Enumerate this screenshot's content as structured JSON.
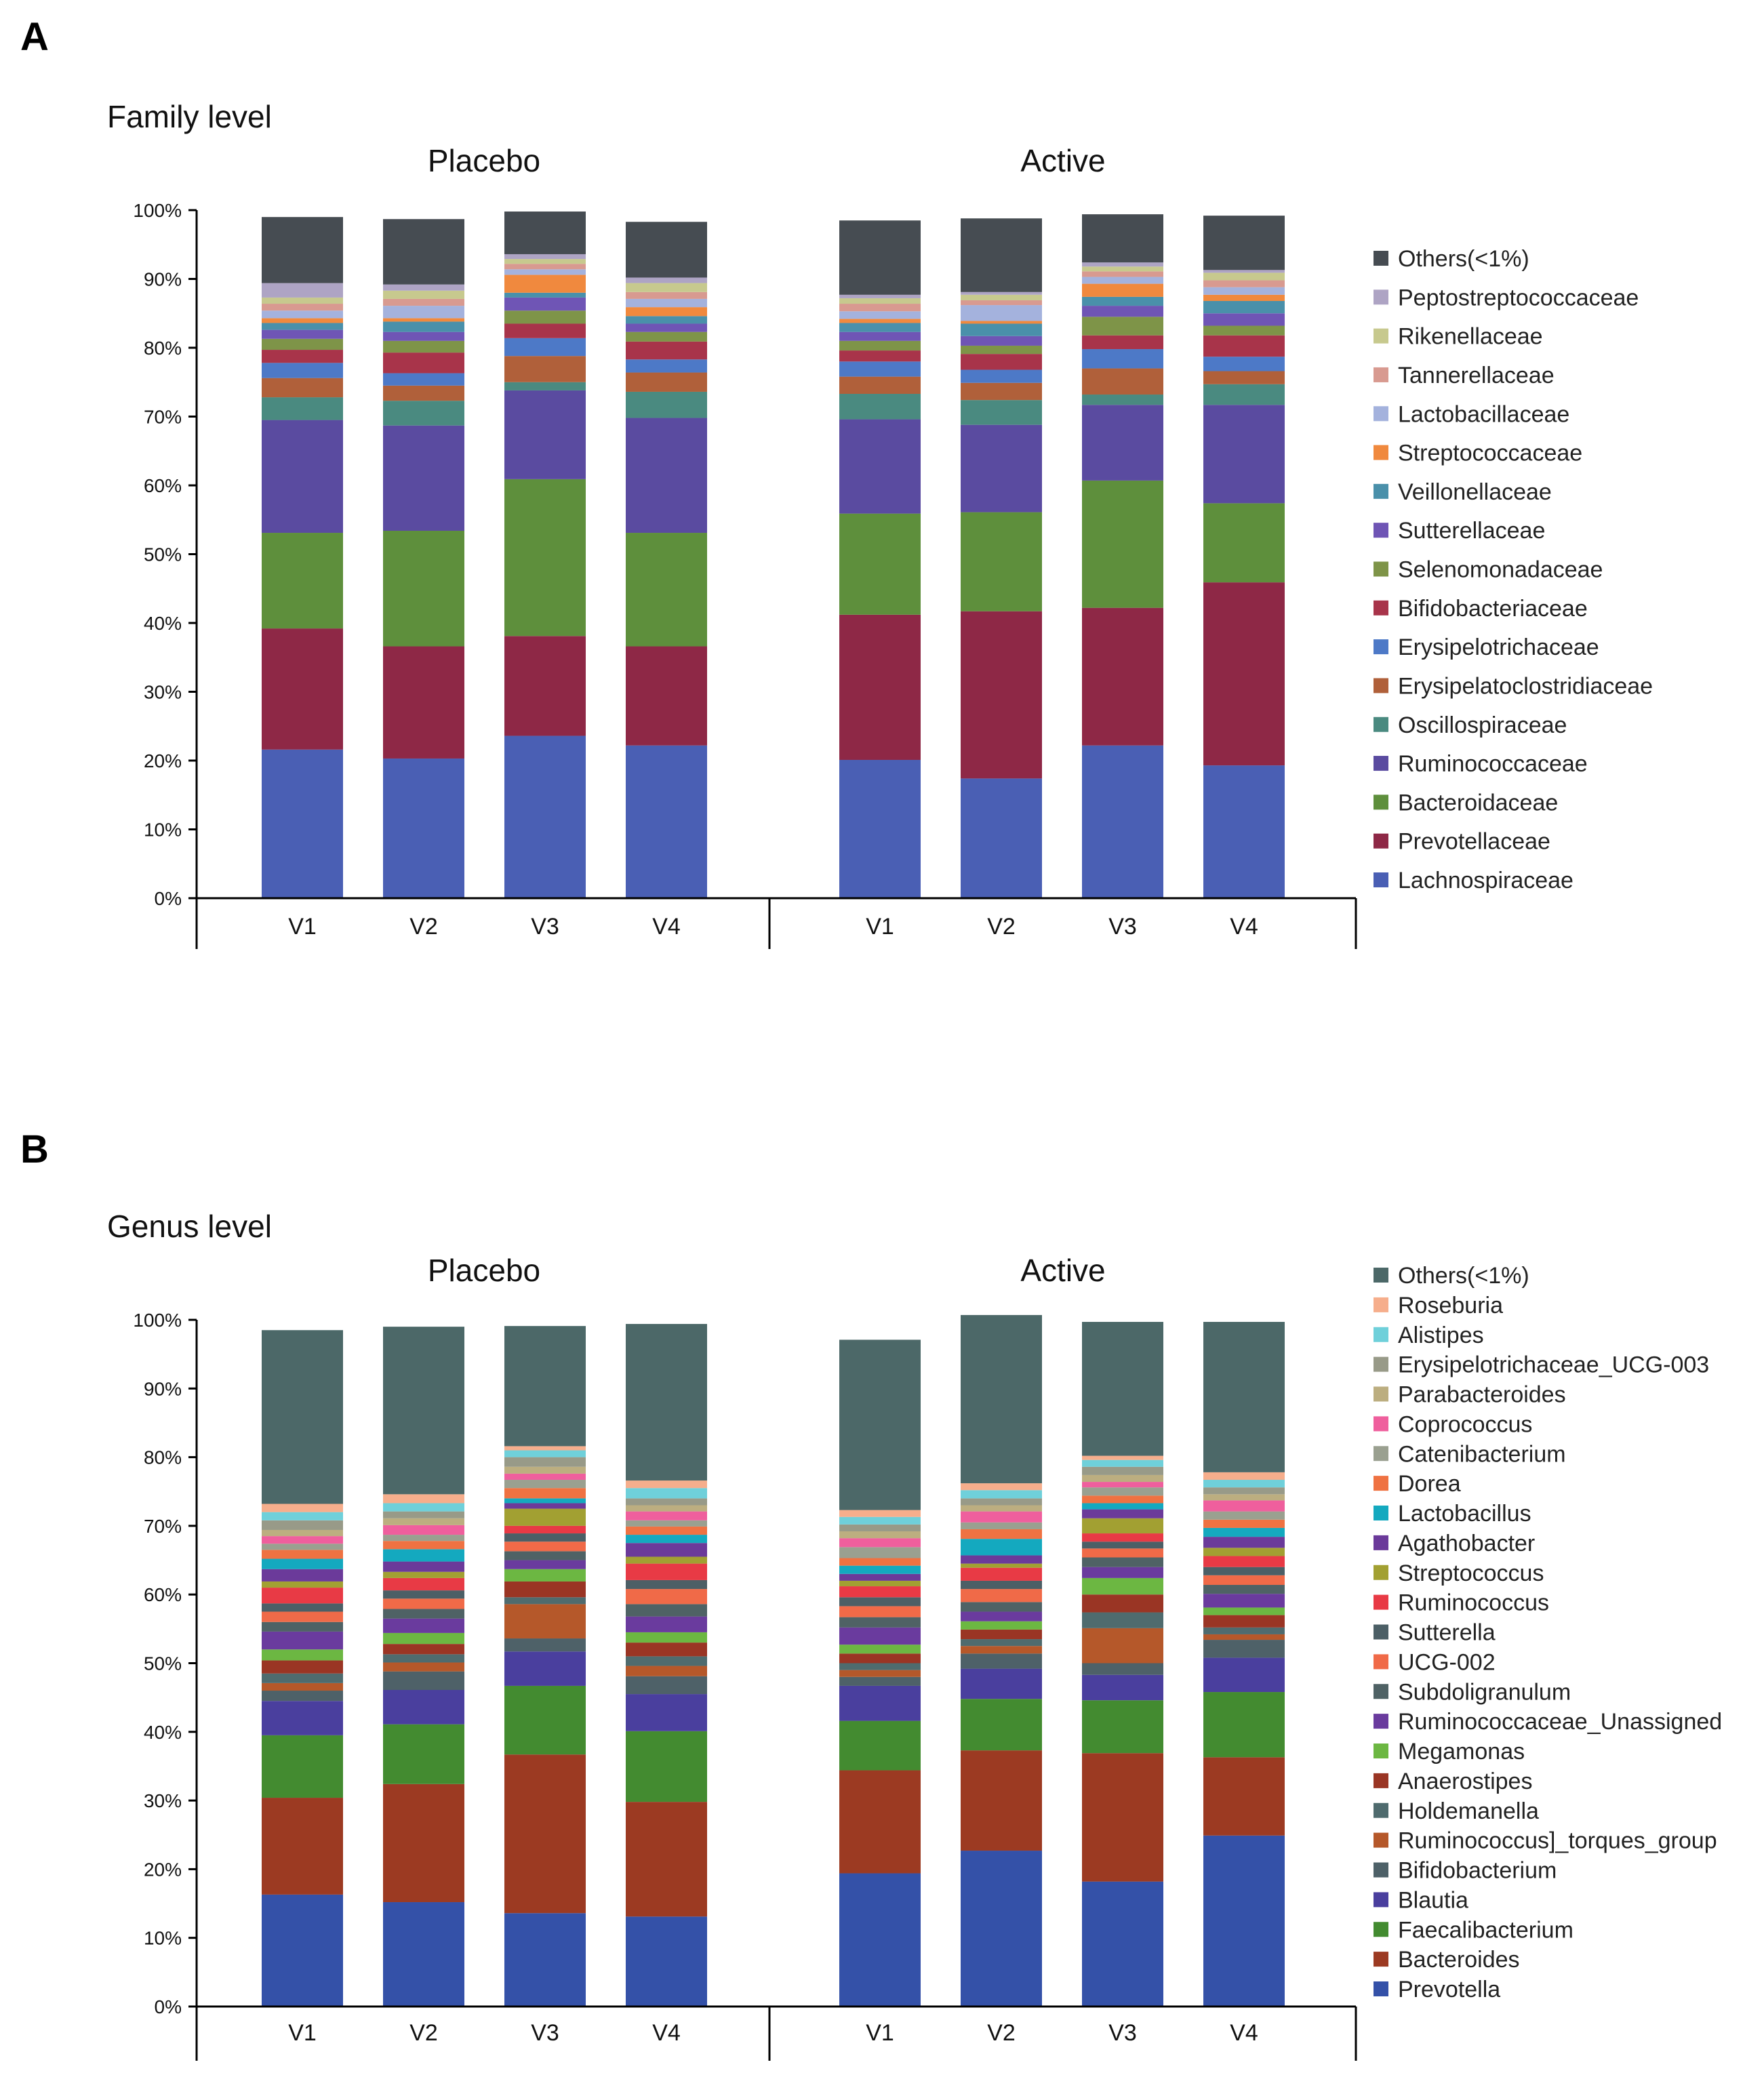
{
  "panels": [
    {
      "letter": "A",
      "level_title": "Family level",
      "groups": [
        "Placebo",
        "Active"
      ],
      "categories": [
        "V1",
        "V2",
        "V3",
        "V4"
      ],
      "y_ticks": [
        "0%",
        "10%",
        "20%",
        "30%",
        "40%",
        "50%",
        "60%",
        "70%",
        "80%",
        "90%",
        "100%"
      ],
      "chart_data": {
        "type": "bar",
        "stacked": true,
        "title": "Family level",
        "xlabel": "",
        "ylabel": "",
        "ylim": [
          0,
          100
        ],
        "bars": [
          "Placebo V1",
          "Placebo V2",
          "Placebo V3",
          "Placebo V4",
          "Active V1",
          "Active V2",
          "Active V3",
          "Active V4"
        ],
        "series": [
          {
            "name": "Lachnospiraceae",
            "color": "#4a5fb4",
            "values": [
              21.6,
              20.3,
              23.6,
              22.2,
              20.1,
              17.4,
              22.2,
              19.3
            ]
          },
          {
            "name": "Prevotellaceae",
            "color": "#8e2846",
            "values": [
              17.6,
              16.3,
              14.5,
              14.4,
              21.1,
              24.3,
              20.0,
              26.6
            ]
          },
          {
            "name": "Bacteroidaceae",
            "color": "#5e8f3c",
            "values": [
              13.9,
              16.8,
              22.8,
              16.5,
              14.7,
              14.4,
              18.5,
              11.5
            ]
          },
          {
            "name": "Ruminococcaceae",
            "color": "#5a4ba0",
            "values": [
              16.4,
              15.3,
              12.9,
              16.7,
              13.7,
              12.7,
              11.0,
              14.3
            ]
          },
          {
            "name": "Oscillospiraceae",
            "color": "#4a8a80",
            "values": [
              3.3,
              3.6,
              1.2,
              3.8,
              3.7,
              3.6,
              1.5,
              3.0
            ]
          },
          {
            "name": "Erysipelatoclostridiaceae",
            "color": "#b0603a",
            "values": [
              2.8,
              2.2,
              3.8,
              2.8,
              2.5,
              2.5,
              3.8,
              1.9
            ]
          },
          {
            "name": "Erysipelotrichaceae",
            "color": "#4d79c7",
            "values": [
              2.2,
              1.8,
              2.6,
              1.9,
              2.2,
              1.9,
              2.8,
              2.1
            ]
          },
          {
            "name": "Bifidobacteriaceae",
            "color": "#a8344a",
            "values": [
              1.9,
              3.0,
              2.1,
              2.6,
              1.6,
              2.3,
              2.0,
              3.1
            ]
          },
          {
            "name": "Selenomonadaceae",
            "color": "#7e9448",
            "values": [
              1.6,
              1.7,
              1.9,
              1.4,
              1.4,
              1.2,
              2.7,
              1.4
            ]
          },
          {
            "name": "Sutterellaceae",
            "color": "#6f55b5",
            "values": [
              1.3,
              1.3,
              1.9,
              1.2,
              1.3,
              1.4,
              1.6,
              1.8
            ]
          },
          {
            "name": "Veillonellaceae",
            "color": "#4a90aa",
            "values": [
              1.0,
              1.5,
              0.7,
              1.1,
              1.3,
              1.8,
              1.3,
              1.8
            ]
          },
          {
            "name": "Streptococcaceae",
            "color": "#f0893e",
            "values": [
              0.7,
              0.5,
              2.6,
              1.3,
              0.6,
              0.4,
              1.9,
              0.9
            ]
          },
          {
            "name": "Lactobacillaceae",
            "color": "#a4b2dd",
            "values": [
              1.1,
              1.8,
              0.8,
              1.2,
              1.1,
              2.3,
              1.0,
              1.1
            ]
          },
          {
            "name": "Tannerellaceae",
            "color": "#d89a90",
            "values": [
              1.0,
              1.0,
              0.8,
              1.0,
              1.1,
              0.7,
              0.8,
              1.0
            ]
          },
          {
            "name": "Rikenellaceae",
            "color": "#c7c98e",
            "values": [
              0.9,
              1.2,
              0.7,
              1.3,
              0.8,
              0.8,
              0.7,
              1.1
            ]
          },
          {
            "name": "Peptostreptococcaceae",
            "color": "#aea4c4",
            "values": [
              2.1,
              0.9,
              0.7,
              0.8,
              0.5,
              0.4,
              0.6,
              0.4
            ]
          },
          {
            "name": "Others(<1%)",
            "color": "#464c52",
            "values": [
              9.6,
              9.5,
              6.2,
              8.1,
              10.8,
              10.7,
              7.0,
              7.9
            ]
          }
        ]
      }
    },
    {
      "letter": "B",
      "level_title": "Genus level",
      "groups": [
        "Placebo",
        "Active"
      ],
      "categories": [
        "V1",
        "V2",
        "V3",
        "V4"
      ],
      "y_ticks": [
        "0%",
        "10%",
        "20%",
        "30%",
        "40%",
        "50%",
        "60%",
        "70%",
        "80%",
        "90%",
        "100%"
      ],
      "chart_data": {
        "type": "bar",
        "stacked": true,
        "title": "Genus level",
        "xlabel": "",
        "ylabel": "",
        "ylim": [
          0,
          100
        ],
        "bars": [
          "Placebo V1",
          "Placebo V2",
          "Placebo V3",
          "Placebo V4",
          "Active V1",
          "Active V2",
          "Active V3",
          "Active V4"
        ],
        "series": [
          {
            "name": "Prevotella",
            "color": "#3451a8",
            "values": [
              16.3,
              15.2,
              13.6,
              13.1,
              19.4,
              22.7,
              18.2,
              24.9
            ]
          },
          {
            "name": "Bacteroides",
            "color": "#9c3a22",
            "values": [
              14.1,
              17.2,
              23.1,
              16.7,
              15.0,
              14.6,
              18.7,
              11.4
            ]
          },
          {
            "name": "Faecalibacterium",
            "color": "#438b30",
            "values": [
              9.1,
              8.7,
              10.0,
              10.3,
              7.2,
              7.5,
              7.7,
              9.5
            ]
          },
          {
            "name": "Blautia",
            "color": "#4a3f9e",
            "values": [
              5.0,
              5.0,
              5.0,
              5.4,
              5.1,
              4.4,
              3.7,
              5.0
            ]
          },
          {
            "name": "Bifidobacterium",
            "color": "#4e6168",
            "values": [
              1.5,
              2.7,
              1.9,
              2.6,
              1.3,
              2.2,
              1.7,
              2.6
            ]
          },
          {
            "name": "Ruminococcus]_torques_group",
            "color": "#b5582a",
            "values": [
              1.1,
              1.3,
              5.0,
              1.5,
              1.0,
              1.1,
              5.1,
              0.8
            ]
          },
          {
            "name": "Holdemanella",
            "color": "#4f6b6e",
            "values": [
              1.4,
              1.2,
              1.0,
              1.4,
              1.0,
              1.0,
              2.3,
              1.0
            ]
          },
          {
            "name": "Anaerostipes",
            "color": "#9a3524",
            "values": [
              1.9,
              1.5,
              2.3,
              2.0,
              1.4,
              1.4,
              2.6,
              1.8
            ]
          },
          {
            "name": "Megamonas",
            "color": "#6cb742",
            "values": [
              1.6,
              1.6,
              1.8,
              1.5,
              1.3,
              1.2,
              2.4,
              1.1
            ]
          },
          {
            "name": "Ruminococcaceae_Unassigned",
            "color": "#6a3b9e",
            "values": [
              2.6,
              2.1,
              1.3,
              2.3,
              2.5,
              1.4,
              1.6,
              2.0
            ]
          },
          {
            "name": "Subdoligranulum",
            "color": "#4f6265",
            "values": [
              1.4,
              1.4,
              1.3,
              1.8,
              1.5,
              1.4,
              1.4,
              1.3
            ]
          },
          {
            "name": "UCG-002",
            "color": "#f06a48",
            "values": [
              1.5,
              1.5,
              1.4,
              2.2,
              1.6,
              1.9,
              1.3,
              1.4
            ]
          },
          {
            "name": "Sutterella",
            "color": "#4c5f66",
            "values": [
              1.2,
              1.2,
              1.2,
              1.3,
              1.3,
              1.2,
              1.0,
              1.2
            ]
          },
          {
            "name": "Ruminococcus",
            "color": "#e83a45",
            "values": [
              2.3,
              1.8,
              1.1,
              2.4,
              1.6,
              1.9,
              1.2,
              1.6
            ]
          },
          {
            "name": "Streptococcus",
            "color": "#a2a032",
            "values": [
              0.9,
              0.9,
              2.5,
              1.0,
              0.8,
              0.6,
              2.2,
              1.2
            ]
          },
          {
            "name": "Agathobacter",
            "color": "#6b3a9a",
            "values": [
              1.8,
              1.5,
              0.8,
              2.0,
              1.0,
              1.2,
              1.3,
              1.6
            ]
          },
          {
            "name": "Lactobacillus",
            "color": "#14a9bf",
            "values": [
              1.5,
              1.8,
              0.7,
              1.2,
              1.2,
              2.4,
              0.9,
              1.3
            ]
          },
          {
            "name": "Dorea",
            "color": "#ef7242",
            "values": [
              1.3,
              1.2,
              1.5,
              1.2,
              1.1,
              1.4,
              1.1,
              1.2
            ]
          },
          {
            "name": "Catenibacterium",
            "color": "#9aa090",
            "values": [
              0.9,
              0.9,
              1.2,
              0.9,
              1.6,
              1.0,
              1.2,
              1.2
            ]
          },
          {
            "name": "Coprococcus",
            "color": "#ef5f9d",
            "values": [
              1.1,
              1.4,
              0.9,
              1.3,
              1.3,
              1.6,
              0.8,
              1.6
            ]
          },
          {
            "name": "Parabacteroides",
            "color": "#bcae80",
            "values": [
              0.9,
              1.0,
              1.0,
              0.9,
              1.0,
              0.9,
              1.0,
              0.9
            ]
          },
          {
            "name": "Erysipelotrichaceae_UCG-003",
            "color": "#989a88",
            "values": [
              1.4,
              1.0,
              1.4,
              1.0,
              1.0,
              1.0,
              1.2,
              1.0
            ]
          },
          {
            "name": "Alistipes",
            "color": "#6fd0da",
            "values": [
              1.2,
              1.2,
              1.0,
              1.5,
              1.1,
              1.2,
              1.0,
              1.1
            ]
          },
          {
            "name": "Roseburia",
            "color": "#f6ae8c",
            "values": [
              1.2,
              1.3,
              0.6,
              1.1,
              1.0,
              1.0,
              0.6,
              1.1
            ]
          },
          {
            "name": "Others(<1%)",
            "color": "#4c6868",
            "values": [
              25.3,
              24.4,
              17.5,
              22.8,
              24.8,
              24.5,
              19.5,
              21.9
            ]
          }
        ]
      }
    }
  ]
}
